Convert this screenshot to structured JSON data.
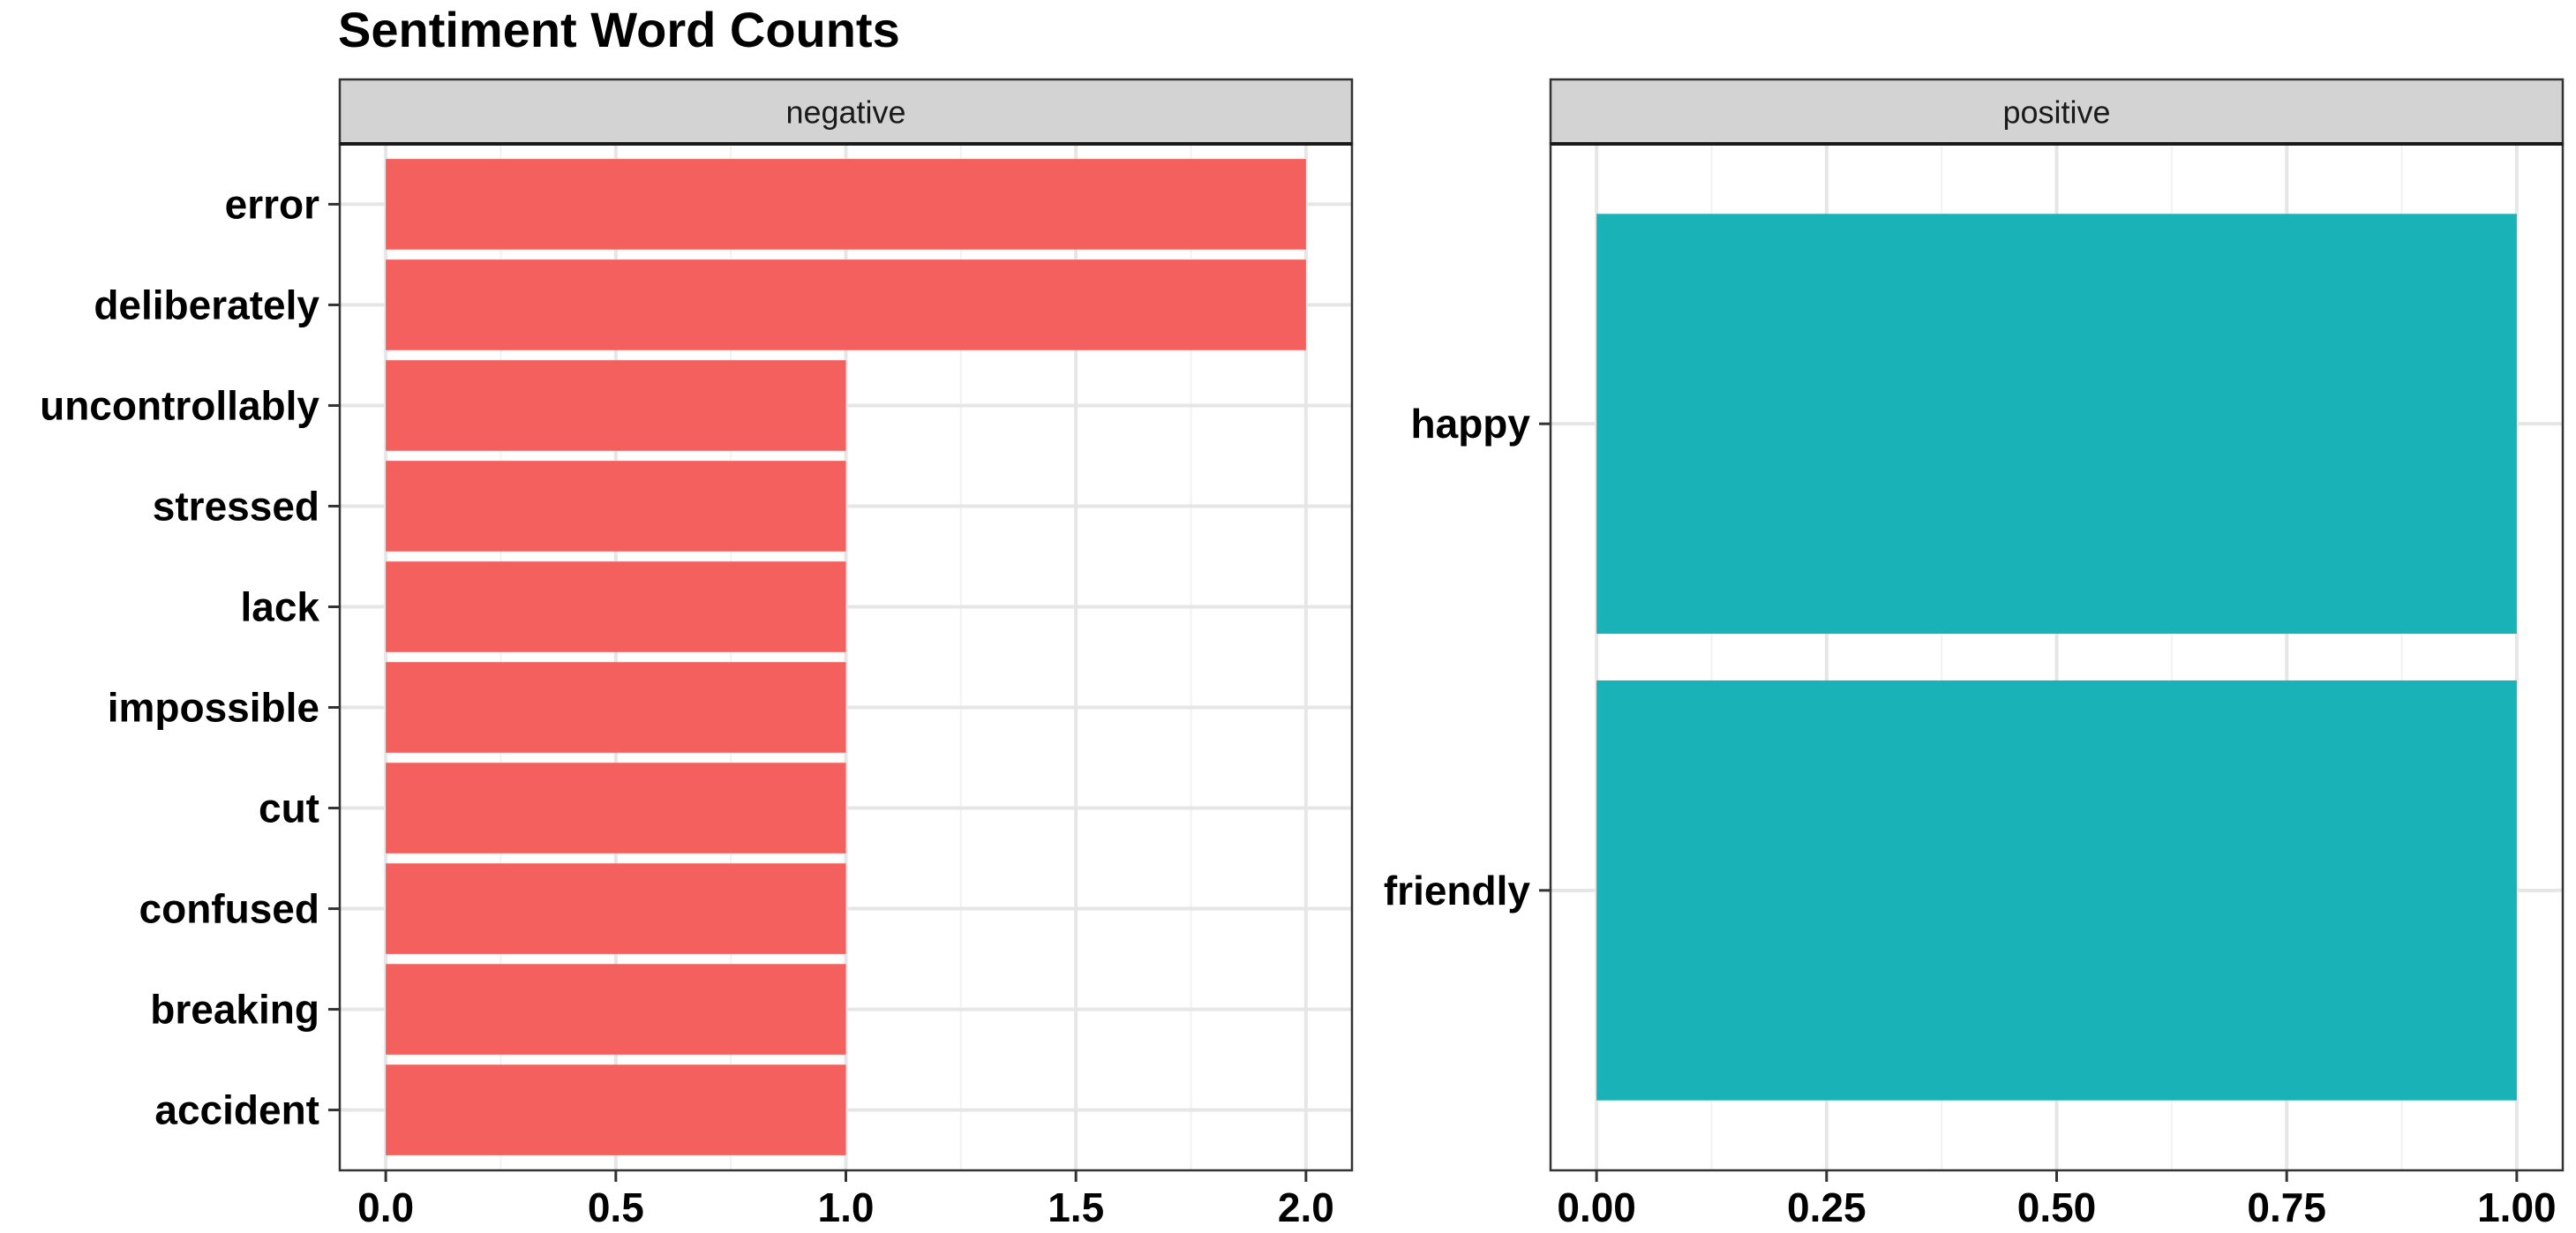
{
  "chart_data": {
    "type": "bar",
    "orientation": "horizontal",
    "title": "Sentiment Word Counts",
    "xlabel": "",
    "ylabel": "",
    "grid": true,
    "legend": "none",
    "facets": [
      {
        "label": "negative",
        "color": "#F3605D",
        "categories": [
          "error",
          "deliberately",
          "uncontrollably",
          "stressed",
          "lack",
          "impossible",
          "cut",
          "confused",
          "breaking",
          "accident"
        ],
        "values": [
          2,
          2,
          1,
          1,
          1,
          1,
          1,
          1,
          1,
          1
        ],
        "xlim": [
          -0.1,
          2.1
        ],
        "ticks": [
          0,
          0.5,
          1,
          1.5,
          2
        ],
        "tick_labels": [
          "0.0",
          "0.5",
          "1.0",
          "1.5",
          "2.0"
        ]
      },
      {
        "label": "positive",
        "color": "#19B2B6",
        "categories": [
          "happy",
          "friendly"
        ],
        "values": [
          1,
          1
        ],
        "xlim": [
          -0.05,
          1.05
        ],
        "ticks": [
          0,
          0.25,
          0.5,
          0.75,
          1
        ],
        "tick_labels": [
          "0.00",
          "0.25",
          "0.50",
          "0.75",
          "1.00"
        ]
      }
    ]
  }
}
